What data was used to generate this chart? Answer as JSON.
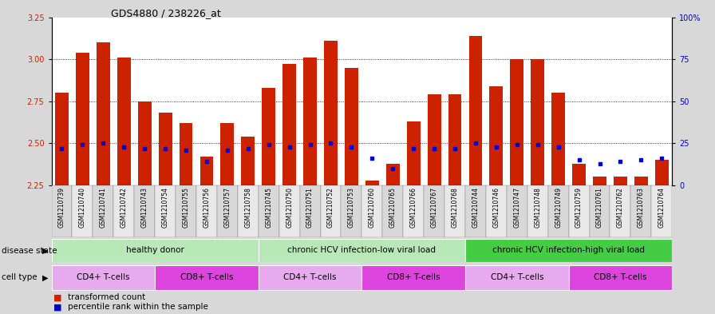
{
  "title": "GDS4880 / 238226_at",
  "samples": [
    "GSM1210739",
    "GSM1210740",
    "GSM1210741",
    "GSM1210742",
    "GSM1210743",
    "GSM1210754",
    "GSM1210755",
    "GSM1210756",
    "GSM1210757",
    "GSM1210758",
    "GSM1210745",
    "GSM1210750",
    "GSM1210751",
    "GSM1210752",
    "GSM1210753",
    "GSM1210760",
    "GSM1210765",
    "GSM1210766",
    "GSM1210767",
    "GSM1210768",
    "GSM1210744",
    "GSM1210746",
    "GSM1210747",
    "GSM1210748",
    "GSM1210749",
    "GSM1210759",
    "GSM1210761",
    "GSM1210762",
    "GSM1210763",
    "GSM1210764"
  ],
  "transformed_count": [
    2.8,
    3.04,
    3.1,
    3.01,
    2.75,
    2.68,
    2.62,
    2.42,
    2.62,
    2.54,
    2.83,
    2.97,
    3.01,
    3.11,
    2.95,
    2.28,
    2.38,
    2.63,
    2.79,
    2.79,
    3.14,
    2.84,
    3.0,
    3.0,
    2.8,
    2.38,
    2.3,
    2.3,
    2.3,
    2.4
  ],
  "percentile_rank": [
    22,
    24,
    25,
    23,
    22,
    22,
    21,
    14,
    21,
    22,
    24,
    23,
    24,
    25,
    23,
    16,
    10,
    22,
    22,
    22,
    25,
    23,
    24,
    24,
    23,
    15,
    13,
    14,
    15,
    16
  ],
  "ylim_left": [
    2.25,
    3.25
  ],
  "ylim_right": [
    0,
    100
  ],
  "yticks_left": [
    2.25,
    2.5,
    2.75,
    3.0,
    3.25
  ],
  "yticks_right": [
    0,
    25,
    50,
    75,
    100
  ],
  "ytick_labels_right": [
    "0",
    "25",
    "50",
    "75",
    "100%"
  ],
  "grid_lines": [
    2.5,
    2.75,
    3.0
  ],
  "bar_color": "#cc2200",
  "dot_color": "#0000cc",
  "bar_bottom": 2.25,
  "disease_state_groups": [
    {
      "label": "healthy donor",
      "start": 0,
      "end": 10,
      "color": "#b8e8b8"
    },
    {
      "label": "chronic HCV infection-low viral load",
      "start": 10,
      "end": 20,
      "color": "#b8e8b8"
    },
    {
      "label": "chronic HCV infection-high viral load",
      "start": 20,
      "end": 30,
      "color": "#44cc44"
    }
  ],
  "cell_type_groups": [
    {
      "label": "CD4+ T-cells",
      "start": 0,
      "end": 5,
      "color": "#e8aaee"
    },
    {
      "label": "CD8+ T-cells",
      "start": 5,
      "end": 10,
      "color": "#dd44dd"
    },
    {
      "label": "CD4+ T-cells",
      "start": 10,
      "end": 15,
      "color": "#e8aaee"
    },
    {
      "label": "CD8+ T-cells",
      "start": 15,
      "end": 20,
      "color": "#dd44dd"
    },
    {
      "label": "CD4+ T-cells",
      "start": 20,
      "end": 25,
      "color": "#e8aaee"
    },
    {
      "label": "CD8+ T-cells",
      "start": 25,
      "end": 30,
      "color": "#dd44dd"
    }
  ],
  "bg_color": "#d8d8d8",
  "plot_bg_color": "#ffffff",
  "label_disease_state": "disease state",
  "label_cell_type": "cell type",
  "legend_transformed": "transformed count",
  "legend_percentile": "percentile rank within the sample",
  "xtick_bg_colors": [
    "#d8d8d8",
    "#e8e8e8"
  ]
}
